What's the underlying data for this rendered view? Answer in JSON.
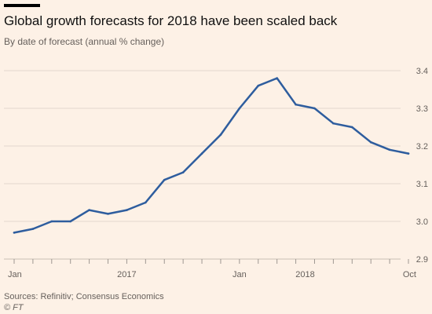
{
  "header": {
    "title": "Global growth forecasts for 2018 have been scaled back",
    "subtitle": "By date of forecast (annual % change)"
  },
  "footer": {
    "source": "Sources: Refinitiv; Consensus Economics",
    "credit": "© FT"
  },
  "colors": {
    "background": "#fdf1e6",
    "line": "#2e5d9e",
    "accent_rule": "#000000"
  },
  "chart_data": {
    "type": "line",
    "title": "Global growth forecasts for 2018 have been scaled back",
    "subtitle": "By date of forecast (annual % change)",
    "xlabel": "",
    "ylabel": "",
    "x_tick_labels": [
      "Jan",
      "2017",
      "Jan",
      "2018",
      "Oct"
    ],
    "y_ticks": [
      2.9,
      3.0,
      3.1,
      3.2,
      3.3,
      3.4
    ],
    "y_tick_labels": [
      "2.9",
      "3.0",
      "3.1",
      "3.2",
      "3.3",
      "3.4"
    ],
    "ylim": [
      2.9,
      3.4
    ],
    "xlim": [
      "2017-01",
      "2018-10"
    ],
    "grid": true,
    "y_axis_position": "right",
    "series": [
      {
        "name": "",
        "x": [
          "2017-01",
          "2017-02",
          "2017-03",
          "2017-04",
          "2017-05",
          "2017-06",
          "2017-07",
          "2017-08",
          "2017-09",
          "2017-10",
          "2017-11",
          "2017-12",
          "2018-01",
          "2018-02",
          "2018-03",
          "2018-04",
          "2018-05",
          "2018-06",
          "2018-07",
          "2018-08",
          "2018-09",
          "2018-10"
        ],
        "values": [
          2.97,
          2.98,
          3.0,
          3.0,
          3.03,
          3.02,
          3.03,
          3.05,
          3.11,
          3.13,
          3.18,
          3.23,
          3.3,
          3.36,
          3.38,
          3.31,
          3.3,
          3.26,
          3.25,
          3.21,
          3.19,
          3.18
        ]
      }
    ]
  }
}
